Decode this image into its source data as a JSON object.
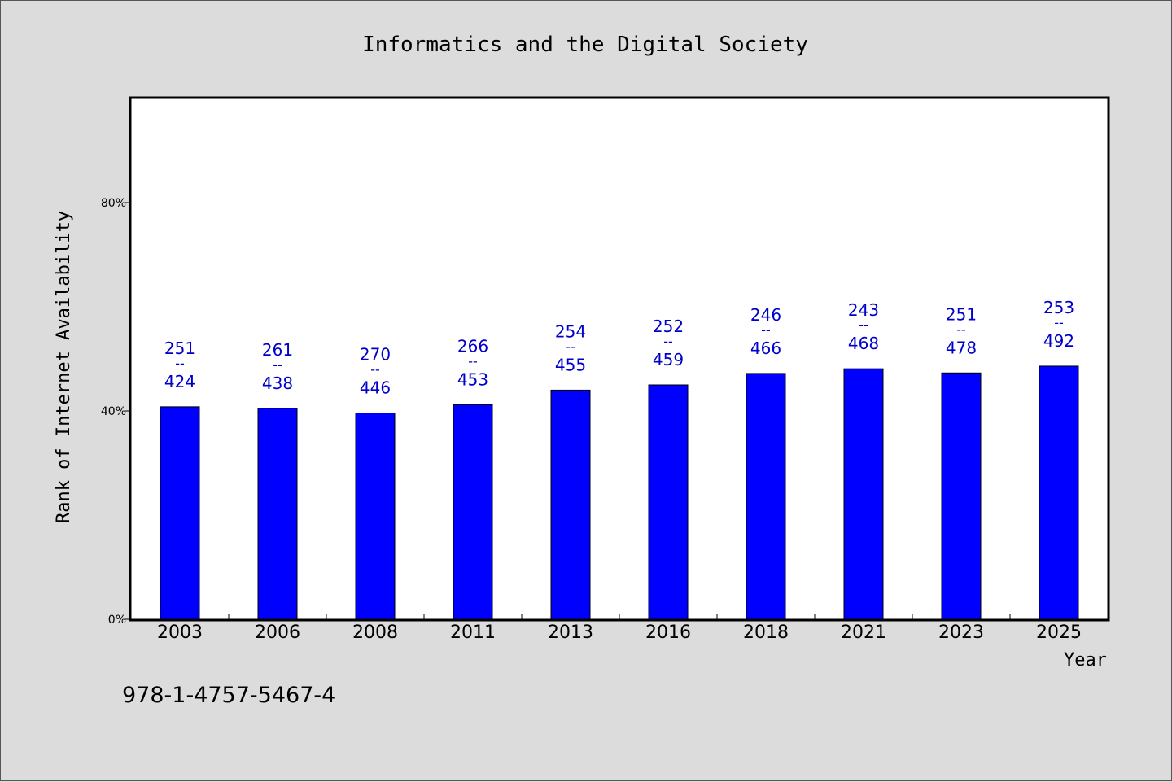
{
  "chart_data": {
    "type": "bar",
    "title": "Informatics and the Digital Society",
    "xlabel": "Year",
    "ylabel": "Rank of Internet Availability",
    "categories": [
      "2003",
      "2006",
      "2008",
      "2011",
      "2013",
      "2016",
      "2018",
      "2021",
      "2023",
      "2025"
    ],
    "series": [
      {
        "values": [
          40.8,
          40.5,
          39.6,
          41.2,
          44.0,
          45.0,
          47.2,
          48.1,
          47.3,
          48.6
        ],
        "numerators": [
          "251",
          "261",
          "270",
          "266",
          "254",
          "252",
          "246",
          "243",
          "251",
          "253"
        ],
        "denominators": [
          "424",
          "438",
          "446",
          "453",
          "455",
          "459",
          "466",
          "468",
          "478",
          "492"
        ]
      }
    ],
    "ylim": [
      0,
      100
    ],
    "yticks": [
      0,
      40,
      80
    ],
    "ytick_labels": [
      "0%",
      "40%",
      "80%"
    ],
    "label_separator": "--",
    "bar_color": "#0000ff",
    "label_color": "#0000cc",
    "grid": false
  },
  "footer": {
    "isbn": "978-1-4757-5467-4"
  }
}
